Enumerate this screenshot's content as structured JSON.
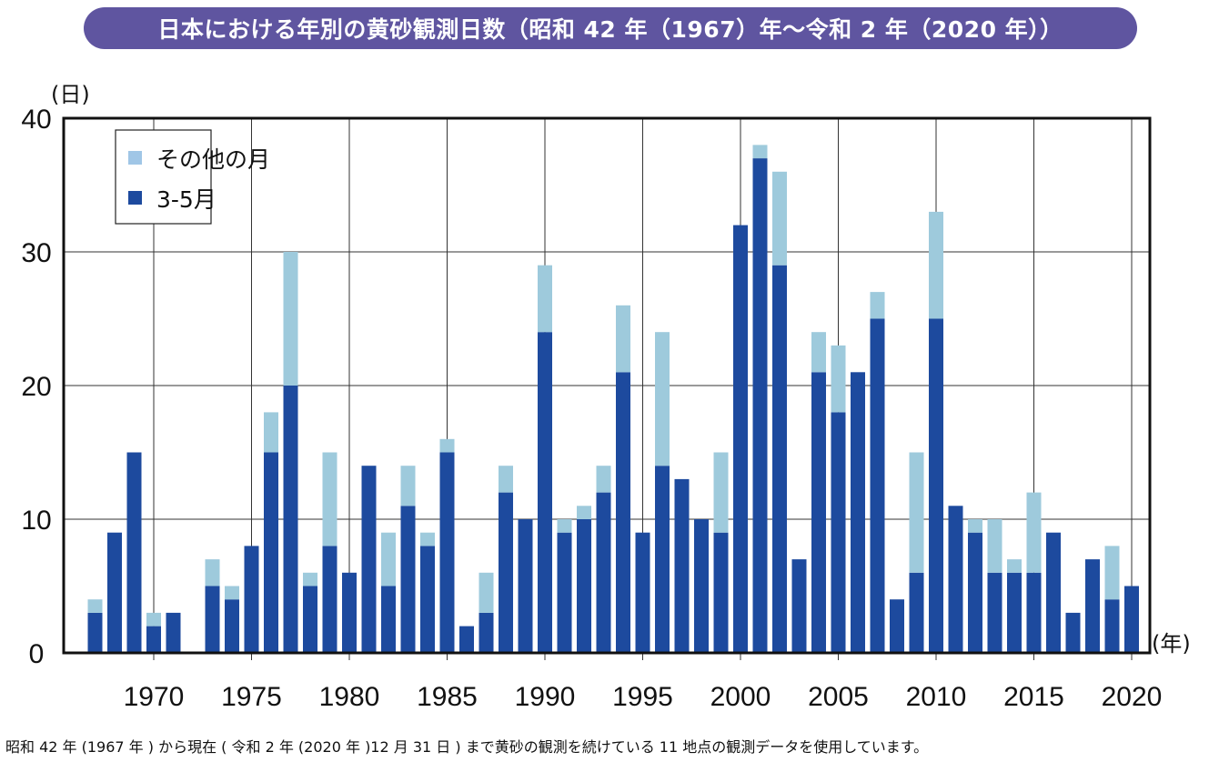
{
  "chart_data": {
    "type": "bar",
    "stacked": true,
    "title": "日本における年別の黄砂観測日数（昭和 42 年（1967）年～令和 2 年（2020 年））",
    "ylabel": "(日)",
    "xlabel": "(年)",
    "ylim": [
      0,
      40
    ],
    "xlim": [
      1967,
      2020
    ],
    "yticks": [
      0,
      10,
      20,
      30,
      40
    ],
    "xticks": [
      1970,
      1975,
      1980,
      1985,
      1990,
      1995,
      2000,
      2005,
      2010,
      2015,
      2020
    ],
    "grid": true,
    "legend_position": "top-left",
    "categories": [
      1967,
      1968,
      1969,
      1970,
      1971,
      1972,
      1973,
      1974,
      1975,
      1976,
      1977,
      1978,
      1979,
      1980,
      1981,
      1982,
      1983,
      1984,
      1985,
      1986,
      1987,
      1988,
      1989,
      1990,
      1991,
      1992,
      1993,
      1994,
      1995,
      1996,
      1997,
      1998,
      1999,
      2000,
      2001,
      2002,
      2003,
      2004,
      2005,
      2006,
      2007,
      2008,
      2009,
      2010,
      2011,
      2012,
      2013,
      2014,
      2015,
      2016,
      2017,
      2018,
      2019,
      2020
    ],
    "series": [
      {
        "name": "3-5月",
        "color": "#1d4a9e",
        "values": [
          3,
          9,
          15,
          2,
          3,
          0,
          5,
          4,
          8,
          15,
          20,
          5,
          8,
          6,
          14,
          5,
          11,
          8,
          15,
          2,
          3,
          12,
          10,
          24,
          9,
          10,
          12,
          21,
          9,
          14,
          13,
          10,
          9,
          32,
          37,
          29,
          7,
          21,
          18,
          21,
          25,
          4,
          6,
          25,
          11,
          9,
          6,
          6,
          6,
          9,
          3,
          7,
          4,
          5
        ]
      },
      {
        "name": "その他の月",
        "color": "#9ecadc",
        "values": [
          1,
          0,
          0,
          1,
          0,
          0,
          2,
          1,
          0,
          3,
          10,
          1,
          7,
          0,
          0,
          4,
          3,
          1,
          1,
          0,
          3,
          2,
          0,
          5,
          1,
          1,
          2,
          5,
          0,
          10,
          0,
          0,
          6,
          0,
          1,
          7,
          0,
          3,
          5,
          0,
          2,
          0,
          9,
          8,
          0,
          1,
          4,
          1,
          6,
          0,
          0,
          0,
          4,
          0
        ]
      }
    ],
    "legend": [
      "その他の月",
      "3-5月"
    ]
  },
  "footnote": "昭和 42 年 (1967 年 ) から現在 ( 令和 2 年 (2020 年 )12 月 31 日 ) まで黄砂の観測を続けている 11 地点の観測データを使用しています。",
  "colors": {
    "title_bg": "#5f55a0",
    "legend_light": "#a0c6e6"
  }
}
